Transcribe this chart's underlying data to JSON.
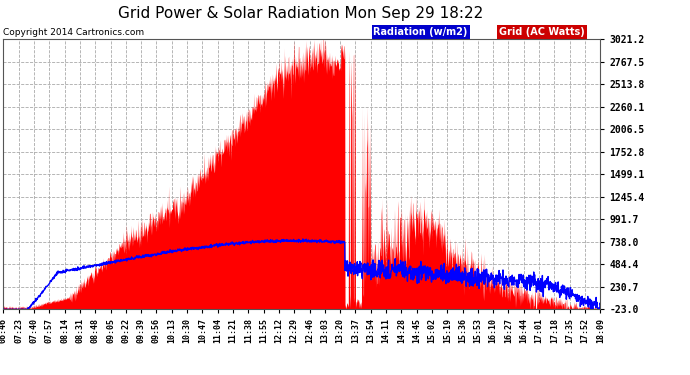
{
  "title": "Grid Power & Solar Radiation Mon Sep 29 18:22",
  "copyright": "Copyright 2014 Cartronics.com",
  "legend_labels": [
    "Radiation (w/m2)",
    "Grid (AC Watts)"
  ],
  "legend_bg_colors": [
    "#0000cc",
    "#cc0000"
  ],
  "yticks": [
    -23.0,
    230.7,
    484.4,
    738.0,
    991.7,
    1245.4,
    1499.1,
    1752.8,
    2006.5,
    2260.1,
    2513.8,
    2767.5,
    3021.2
  ],
  "ymin": -23.0,
  "ymax": 3021.2,
  "background_color": "#ffffff",
  "plot_bg_color": "#ffffff",
  "grid_color": "#aaaaaa",
  "title_fontsize": 11,
  "xtick_labels": [
    "06:46",
    "07:23",
    "07:40",
    "07:57",
    "08:14",
    "08:31",
    "08:48",
    "09:05",
    "09:22",
    "09:39",
    "09:56",
    "10:13",
    "10:30",
    "10:47",
    "11:04",
    "11:21",
    "11:38",
    "11:55",
    "12:12",
    "12:29",
    "12:46",
    "13:03",
    "13:20",
    "13:37",
    "13:54",
    "14:11",
    "14:28",
    "14:45",
    "15:02",
    "15:19",
    "15:36",
    "15:53",
    "16:10",
    "16:27",
    "16:44",
    "17:01",
    "17:18",
    "17:35",
    "17:52",
    "18:09"
  ],
  "solar_color": "#ff0000",
  "radiation_color": "#0000ff"
}
